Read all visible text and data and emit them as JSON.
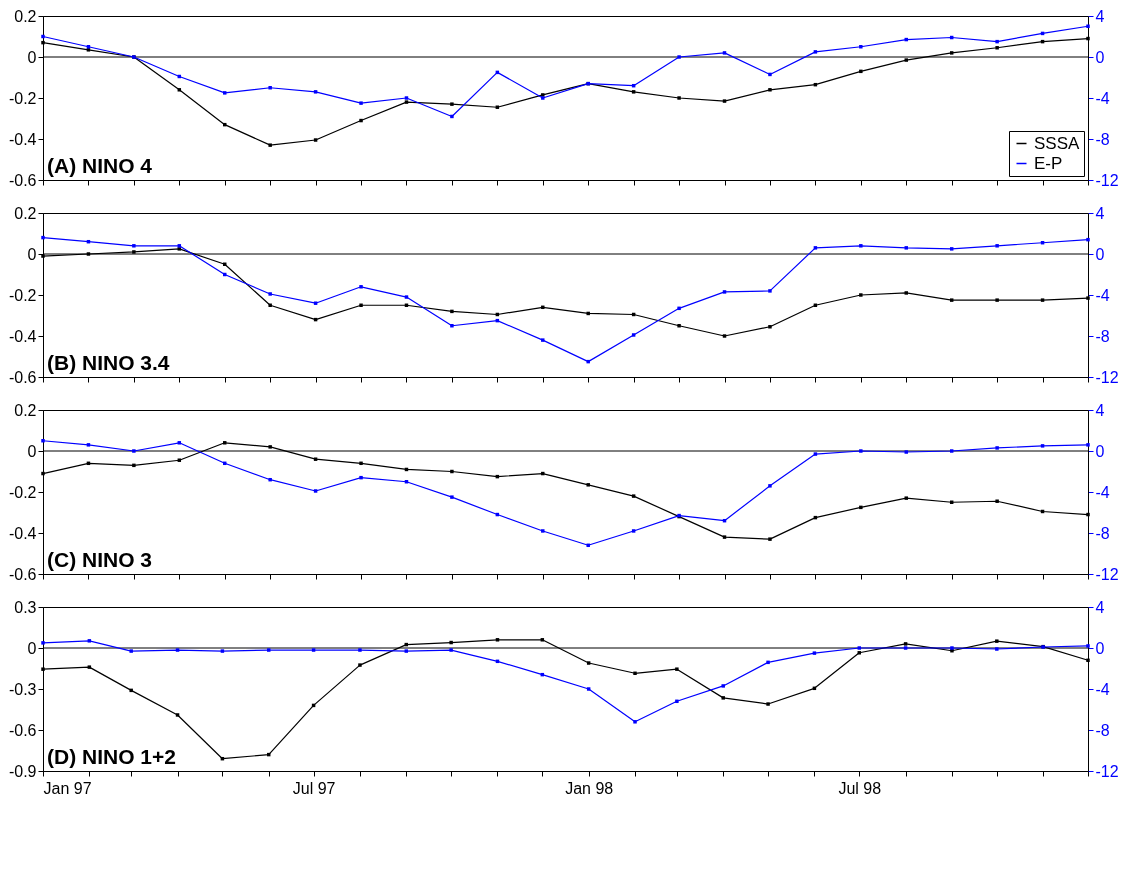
{
  "chart_data": [
    {
      "type": "line",
      "title": "(A) NINO 4",
      "categories": [
        null,
        null,
        null,
        null,
        null,
        null,
        null,
        null,
        null,
        null,
        null,
        null,
        null,
        null,
        null,
        null,
        null,
        null,
        null,
        null,
        null,
        null,
        null,
        null
      ],
      "ylim": [
        -0.6,
        0.2
      ],
      "yticks": [
        -0.6,
        -0.4,
        -0.2,
        0,
        0.2
      ],
      "y2lim": [
        -12,
        4
      ],
      "y2ticks": [
        -12,
        -8,
        -4,
        0,
        4
      ],
      "series": [
        {
          "name": "SSSA",
          "color": "#000000",
          "values": [
            0.07,
            0.035,
            0,
            -0.16,
            -0.33,
            -0.43,
            -0.405,
            -0.31,
            -0.22,
            -0.23,
            -0.245,
            -0.185,
            -0.13,
            -0.17,
            -0.2,
            -0.215,
            -0.16,
            -0.135,
            -0.07,
            -0.015,
            0.02,
            0.045,
            0.075,
            0.09
          ]
        },
        {
          "name": "E-P",
          "color": "#0000ff",
          "axis": "y2",
          "values": [
            2.0,
            1.0,
            0,
            -1.9,
            -3.5,
            -3.0,
            -3.4,
            -4.5,
            -4.0,
            -5.8,
            -1.5,
            -4.0,
            -2.6,
            -2.8,
            0,
            0.4,
            -1.7,
            0.5,
            1.0,
            1.7,
            1.9,
            1.5,
            2.3,
            3.0
          ]
        }
      ],
      "marker": "square",
      "ref_lines": [
        {
          "axis": "y",
          "value": 0
        }
      ],
      "legend": "bottom right"
    },
    {
      "type": "line",
      "title": "(B) NINO 3.4",
      "categories": [
        null,
        null,
        null,
        null,
        null,
        null,
        null,
        null,
        null,
        null,
        null,
        null,
        null,
        null,
        null,
        null,
        null,
        null,
        null,
        null,
        null,
        null,
        null,
        null
      ],
      "ylim": [
        -0.6,
        0.2
      ],
      "yticks": [
        -0.6,
        -0.4,
        -0.2,
        0,
        0.2
      ],
      "y2lim": [
        -12,
        4
      ],
      "y2ticks": [
        -12,
        -8,
        -4,
        0,
        4
      ],
      "series": [
        {
          "color": "#000000",
          "values": [
            -0.01,
            0,
            0.01,
            0.025,
            -0.05,
            -0.25,
            -0.32,
            -0.25,
            -0.25,
            -0.28,
            -0.295,
            -0.26,
            -0.29,
            -0.295,
            -0.35,
            -0.4,
            -0.355,
            -0.25,
            -0.2,
            -0.19,
            -0.225,
            -0.225,
            -0.225,
            -0.215
          ]
        },
        {
          "color": "#0000ff",
          "axis": "y2",
          "values": [
            1.6,
            1.2,
            0.8,
            0.8,
            -2.0,
            -3.9,
            -4.8,
            -3.2,
            -4.2,
            -7.0,
            -6.5,
            -8.4,
            -10.5,
            -7.9,
            -5.3,
            -3.7,
            -3.6,
            0.6,
            0.8,
            0.6,
            0.5,
            0.8,
            1.1,
            1.4
          ]
        }
      ],
      "marker": "square",
      "ref_lines": [
        {
          "axis": "y",
          "value": 0
        }
      ]
    },
    {
      "type": "line",
      "title": "(C) NINO 3",
      "categories": [
        null,
        null,
        null,
        null,
        null,
        null,
        null,
        null,
        null,
        null,
        null,
        null,
        null,
        null,
        null,
        null,
        null,
        null,
        null,
        null,
        null,
        null,
        null,
        null
      ],
      "ylim": [
        -0.6,
        0.2
      ],
      "yticks": [
        -0.6,
        -0.4,
        -0.2,
        0,
        0.2
      ],
      "y2lim": [
        -12,
        4
      ],
      "y2ticks": [
        -12,
        -8,
        -4,
        0,
        4
      ],
      "series": [
        {
          "color": "#000000",
          "values": [
            -0.11,
            -0.06,
            -0.07,
            -0.045,
            0.04,
            0.02,
            -0.04,
            -0.06,
            -0.09,
            -0.1,
            -0.125,
            -0.11,
            -0.165,
            -0.22,
            -0.32,
            -0.42,
            -0.43,
            -0.325,
            -0.275,
            -0.23,
            -0.25,
            -0.245,
            -0.295,
            -0.31
          ]
        },
        {
          "color": "#0000ff",
          "axis": "y2",
          "values": [
            1.0,
            0.6,
            0,
            0.8,
            -1.2,
            -2.8,
            -3.9,
            -2.6,
            -3.0,
            -4.5,
            -6.2,
            -7.8,
            -9.2,
            -7.8,
            -6.3,
            -6.8,
            -3.4,
            -0.3,
            0,
            -0.1,
            0,
            0.3,
            0.5,
            0.6
          ]
        }
      ],
      "marker": "square",
      "ref_lines": [
        {
          "axis": "y",
          "value": 0
        }
      ]
    },
    {
      "type": "line",
      "title": "(D) NINO 1+2",
      "x": [
        "1997-01",
        "1997-02",
        "1997-03",
        "1997-04",
        "1997-05",
        "1997-06",
        "1997-07",
        "1997-08",
        "1997-09",
        "1997-10",
        "1997-11",
        "1997-12",
        "1998-01",
        "1998-02",
        "1998-03",
        "1998-04",
        "1998-05",
        "1998-06",
        "1998-07",
        "1998-08",
        "1998-09",
        "1998-10",
        "1998-11",
        "1998-12"
      ],
      "xlim": [
        "1997-01",
        "1998-12"
      ],
      "xticks": [
        {
          "value": "1997-01",
          "label": "Jan 97"
        },
        {
          "value": "1997-02",
          "label": null
        },
        {
          "value": "1997-03",
          "label": null
        },
        {
          "value": "1997-04",
          "label": null
        },
        {
          "value": "1997-05",
          "label": null
        },
        {
          "value": "1997-06",
          "label": null
        },
        {
          "value": "1997-07",
          "label": "Jul 97"
        },
        {
          "value": "1997-08",
          "label": null
        },
        {
          "value": "1997-09",
          "label": null
        },
        {
          "value": "1997-10",
          "label": null
        },
        {
          "value": "1997-11",
          "label": null
        },
        {
          "value": "1997-12",
          "label": null
        },
        {
          "value": "1998-01",
          "label": "Jan 98"
        },
        {
          "value": "1998-02",
          "label": null
        },
        {
          "value": "1998-03",
          "label": null
        },
        {
          "value": "1998-04",
          "label": null
        },
        {
          "value": "1998-05",
          "label": null
        },
        {
          "value": "1998-06",
          "label": null
        },
        {
          "value": "1998-07",
          "label": "Jul 98"
        },
        {
          "value": "1998-08",
          "label": null
        },
        {
          "value": "1998-09",
          "label": null
        },
        {
          "value": "1998-10",
          "label": null
        },
        {
          "value": "1998-11",
          "label": null
        },
        {
          "value": "1998-12",
          "label": null
        }
      ],
      "ylim": [
        -0.9,
        0.3
      ],
      "yticks": [
        -0.9,
        -0.6,
        -0.3,
        0,
        0.3
      ],
      "y2lim": [
        -12,
        4
      ],
      "y2ticks": [
        -12,
        -8,
        -4,
        0,
        4
      ],
      "series": [
        {
          "color": "#000000",
          "values": [
            -0.155,
            -0.14,
            -0.31,
            -0.49,
            -0.81,
            -0.78,
            -0.42,
            -0.125,
            0.025,
            0.04,
            0.06,
            0.06,
            -0.11,
            -0.185,
            -0.155,
            -0.365,
            -0.41,
            -0.295,
            -0.035,
            0.03,
            -0.02,
            0.05,
            0.01,
            -0.09
          ]
        },
        {
          "color": "#0000ff",
          "axis": "y2",
          "values": [
            0.5,
            0.7,
            -0.3,
            -0.2,
            -0.3,
            -0.2,
            -0.2,
            -0.2,
            -0.3,
            -0.2,
            -1.3,
            -2.6,
            -4.0,
            -7.2,
            -5.2,
            -3.7,
            -1.4,
            -0.5,
            0,
            0,
            0,
            -0.1,
            0.1,
            0.2
          ]
        }
      ],
      "marker": "square",
      "ref_lines": [
        {
          "axis": "y",
          "value": 0
        }
      ]
    }
  ]
}
